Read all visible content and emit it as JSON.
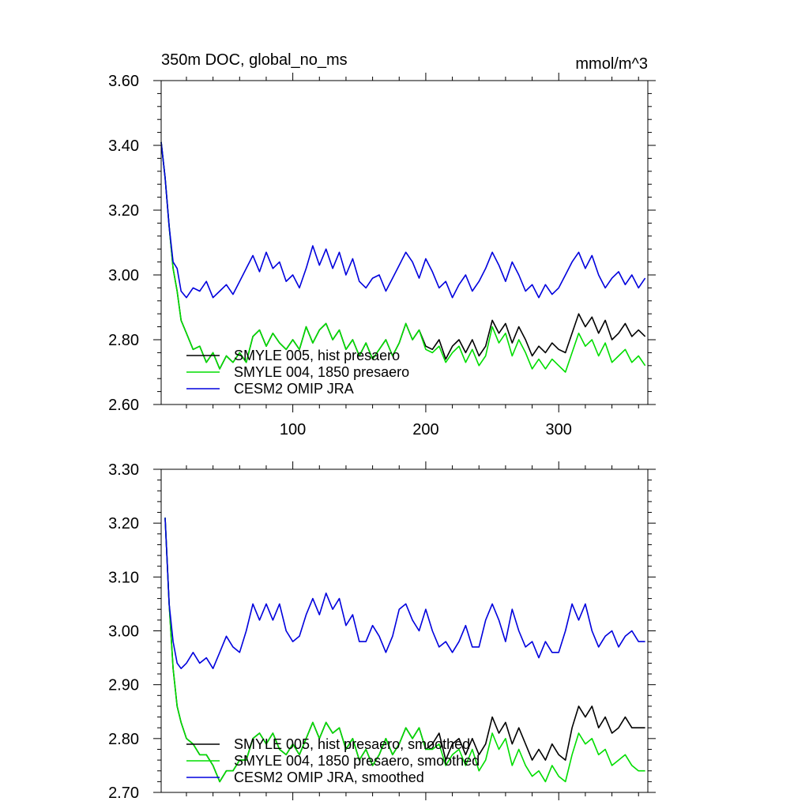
{
  "chart_data": [
    {
      "type": "line",
      "title": "350m DOC, global_no_ms",
      "units": "mmol/m^3",
      "xlim": [
        1,
        367
      ],
      "ylim": [
        2.6,
        3.6
      ],
      "x_ticks": [
        100,
        200,
        300
      ],
      "x_tick_labels": [
        "100",
        "200",
        "300"
      ],
      "y_ticks": [
        2.6,
        2.8,
        3.0,
        3.2,
        3.4,
        3.6
      ],
      "y_tick_labels": [
        "2.60",
        "2.80",
        "3.00",
        "3.20",
        "3.40",
        "3.60"
      ],
      "legend_position": "bottom-left",
      "series": [
        {
          "name": "SMYLE 005, hist presaero",
          "color": "#000000",
          "x": [
            1,
            4,
            7,
            10,
            13,
            16,
            20,
            25,
            30,
            35,
            40,
            45,
            50,
            55,
            60,
            65,
            70,
            75,
            80,
            85,
            90,
            95,
            100,
            105,
            110,
            115,
            120,
            125,
            130,
            135,
            140,
            145,
            150,
            155,
            160,
            165,
            170,
            175,
            180,
            185,
            190,
            195,
            200,
            205,
            210,
            215,
            220,
            225,
            230,
            235,
            240,
            245,
            250,
            255,
            260,
            265,
            270,
            275,
            280,
            285,
            290,
            295,
            300,
            305,
            310,
            315,
            320,
            325,
            330,
            335,
            340,
            345,
            350,
            355,
            360,
            365
          ],
          "y": [
            3.41,
            3.3,
            3.15,
            3.02,
            2.95,
            2.86,
            2.82,
            2.77,
            2.78,
            2.73,
            2.76,
            2.71,
            2.75,
            2.73,
            2.76,
            2.73,
            2.81,
            2.83,
            2.78,
            2.82,
            2.79,
            2.77,
            2.8,
            2.77,
            2.84,
            2.79,
            2.83,
            2.85,
            2.8,
            2.83,
            2.77,
            2.8,
            2.75,
            2.79,
            2.74,
            2.77,
            2.8,
            2.75,
            2.79,
            2.85,
            2.8,
            2.83,
            2.78,
            2.77,
            2.8,
            2.74,
            2.78,
            2.8,
            2.76,
            2.8,
            2.75,
            2.78,
            2.86,
            2.82,
            2.85,
            2.79,
            2.84,
            2.8,
            2.75,
            2.78,
            2.76,
            2.79,
            2.77,
            2.76,
            2.82,
            2.88,
            2.84,
            2.87,
            2.82,
            2.86,
            2.8,
            2.82,
            2.85,
            2.81,
            2.83,
            2.81
          ]
        },
        {
          "name": "SMYLE 004, 1850 presaero",
          "color": "#00dd00",
          "x": [
            1,
            4,
            7,
            10,
            13,
            16,
            20,
            25,
            30,
            35,
            40,
            45,
            50,
            55,
            60,
            65,
            70,
            75,
            80,
            85,
            90,
            95,
            100,
            105,
            110,
            115,
            120,
            125,
            130,
            135,
            140,
            145,
            150,
            155,
            160,
            165,
            170,
            175,
            180,
            185,
            190,
            195,
            200,
            205,
            210,
            215,
            220,
            225,
            230,
            235,
            240,
            245,
            250,
            255,
            260,
            265,
            270,
            275,
            280,
            285,
            290,
            295,
            300,
            305,
            310,
            315,
            320,
            325,
            330,
            335,
            340,
            345,
            350,
            355,
            360,
            365
          ],
          "y": [
            3.41,
            3.3,
            3.15,
            3.02,
            2.95,
            2.86,
            2.82,
            2.77,
            2.78,
            2.73,
            2.76,
            2.71,
            2.75,
            2.73,
            2.76,
            2.73,
            2.81,
            2.83,
            2.78,
            2.82,
            2.79,
            2.77,
            2.8,
            2.77,
            2.84,
            2.79,
            2.83,
            2.85,
            2.8,
            2.83,
            2.77,
            2.8,
            2.75,
            2.79,
            2.74,
            2.77,
            2.8,
            2.75,
            2.79,
            2.85,
            2.8,
            2.83,
            2.77,
            2.76,
            2.78,
            2.73,
            2.76,
            2.78,
            2.73,
            2.77,
            2.72,
            2.75,
            2.84,
            2.79,
            2.82,
            2.75,
            2.8,
            2.76,
            2.71,
            2.74,
            2.71,
            2.74,
            2.72,
            2.7,
            2.76,
            2.82,
            2.78,
            2.8,
            2.75,
            2.79,
            2.73,
            2.75,
            2.77,
            2.73,
            2.75,
            2.72
          ]
        },
        {
          "name": "CESM2 OMIP JRA",
          "color": "#0000dd",
          "x": [
            1,
            4,
            7,
            10,
            13,
            16,
            20,
            25,
            30,
            35,
            40,
            45,
            50,
            55,
            60,
            65,
            70,
            75,
            80,
            85,
            90,
            95,
            100,
            105,
            110,
            115,
            120,
            125,
            130,
            135,
            140,
            145,
            150,
            155,
            160,
            165,
            170,
            175,
            180,
            185,
            190,
            195,
            200,
            205,
            210,
            215,
            220,
            225,
            230,
            235,
            240,
            245,
            250,
            255,
            260,
            265,
            270,
            275,
            280,
            285,
            290,
            295,
            300,
            305,
            310,
            315,
            320,
            325,
            330,
            335,
            340,
            345,
            350,
            355,
            360,
            365
          ],
          "y": [
            3.41,
            3.3,
            3.15,
            3.04,
            3.02,
            2.95,
            2.93,
            2.96,
            2.95,
            2.98,
            2.93,
            2.95,
            2.97,
            2.94,
            2.98,
            3.02,
            3.06,
            3.01,
            3.07,
            3.02,
            3.04,
            2.98,
            3.0,
            2.96,
            3.02,
            3.09,
            3.03,
            3.08,
            3.02,
            3.07,
            3.0,
            3.05,
            2.98,
            2.96,
            2.99,
            3.0,
            2.95,
            2.99,
            3.03,
            3.07,
            3.04,
            2.99,
            3.05,
            3.01,
            2.96,
            2.98,
            2.93,
            2.97,
            3.0,
            2.95,
            2.98,
            3.02,
            3.07,
            3.03,
            2.98,
            3.04,
            3.0,
            2.95,
            2.97,
            2.93,
            2.97,
            2.94,
            2.96,
            3.0,
            3.04,
            3.07,
            3.02,
            3.06,
            3.0,
            2.96,
            2.99,
            3.01,
            2.97,
            3.0,
            2.96,
            2.99
          ]
        }
      ]
    },
    {
      "type": "line",
      "title": "",
      "units": "",
      "xlim": [
        1,
        367
      ],
      "ylim": [
        2.7,
        3.3
      ],
      "x_ticks": [
        100,
        200,
        300
      ],
      "x_tick_labels": [],
      "y_ticks": [
        2.7,
        2.8,
        2.9,
        3.0,
        3.1,
        3.2,
        3.3
      ],
      "y_tick_labels": [
        "2.70",
        "2.80",
        "2.90",
        "3.00",
        "3.10",
        "3.20",
        "3.30"
      ],
      "legend_position": "bottom-left",
      "series": [
        {
          "name": "SMYLE 005, hist presaero, smoothed",
          "color": "#000000",
          "x": [
            4,
            7,
            10,
            13,
            16,
            20,
            25,
            30,
            35,
            40,
            45,
            50,
            55,
            60,
            65,
            70,
            75,
            80,
            85,
            90,
            95,
            100,
            105,
            110,
            115,
            120,
            125,
            130,
            135,
            140,
            145,
            150,
            155,
            160,
            165,
            170,
            175,
            180,
            185,
            190,
            195,
            200,
            205,
            210,
            215,
            220,
            225,
            230,
            235,
            240,
            245,
            250,
            255,
            260,
            265,
            270,
            275,
            280,
            285,
            290,
            295,
            300,
            305,
            310,
            315,
            320,
            325,
            330,
            335,
            340,
            345,
            350,
            355,
            360,
            365
          ],
          "y": [
            3.21,
            3.05,
            2.93,
            2.86,
            2.83,
            2.8,
            2.79,
            2.77,
            2.77,
            2.75,
            2.72,
            2.74,
            2.74,
            2.76,
            2.76,
            2.8,
            2.81,
            2.79,
            2.81,
            2.78,
            2.77,
            2.79,
            2.77,
            2.8,
            2.83,
            2.8,
            2.83,
            2.81,
            2.82,
            2.78,
            2.8,
            2.76,
            2.78,
            2.75,
            2.77,
            2.8,
            2.77,
            2.79,
            2.82,
            2.8,
            2.82,
            2.78,
            2.79,
            2.81,
            2.76,
            2.79,
            2.8,
            2.77,
            2.8,
            2.77,
            2.79,
            2.84,
            2.81,
            2.83,
            2.79,
            2.82,
            2.79,
            2.76,
            2.78,
            2.76,
            2.79,
            2.77,
            2.76,
            2.82,
            2.86,
            2.84,
            2.86,
            2.82,
            2.84,
            2.81,
            2.82,
            2.84,
            2.82,
            2.82,
            2.82
          ]
        },
        {
          "name": "SMYLE 004, 1850 presaero, smoothed",
          "color": "#00dd00",
          "x": [
            4,
            7,
            10,
            13,
            16,
            20,
            25,
            30,
            35,
            40,
            45,
            50,
            55,
            60,
            65,
            70,
            75,
            80,
            85,
            90,
            95,
            100,
            105,
            110,
            115,
            120,
            125,
            130,
            135,
            140,
            145,
            150,
            155,
            160,
            165,
            170,
            175,
            180,
            185,
            190,
            195,
            200,
            205,
            210,
            215,
            220,
            225,
            230,
            235,
            240,
            245,
            250,
            255,
            260,
            265,
            270,
            275,
            280,
            285,
            290,
            295,
            300,
            305,
            310,
            315,
            320,
            325,
            330,
            335,
            340,
            345,
            350,
            355,
            360,
            365
          ],
          "y": [
            3.21,
            3.05,
            2.93,
            2.86,
            2.83,
            2.8,
            2.79,
            2.77,
            2.77,
            2.75,
            2.72,
            2.74,
            2.74,
            2.76,
            2.76,
            2.8,
            2.81,
            2.79,
            2.81,
            2.78,
            2.77,
            2.79,
            2.77,
            2.8,
            2.83,
            2.8,
            2.83,
            2.81,
            2.82,
            2.78,
            2.8,
            2.76,
            2.78,
            2.75,
            2.77,
            2.8,
            2.77,
            2.79,
            2.82,
            2.8,
            2.82,
            2.78,
            2.78,
            2.79,
            2.75,
            2.77,
            2.78,
            2.75,
            2.78,
            2.74,
            2.76,
            2.81,
            2.78,
            2.8,
            2.75,
            2.78,
            2.75,
            2.73,
            2.74,
            2.72,
            2.75,
            2.73,
            2.72,
            2.77,
            2.81,
            2.79,
            2.8,
            2.77,
            2.78,
            2.75,
            2.76,
            2.77,
            2.75,
            2.74,
            2.74
          ]
        },
        {
          "name": "CESM2 OMIP JRA, smoothed",
          "color": "#0000dd",
          "x": [
            4,
            7,
            10,
            13,
            16,
            20,
            25,
            30,
            35,
            40,
            45,
            50,
            55,
            60,
            65,
            70,
            75,
            80,
            85,
            90,
            95,
            100,
            105,
            110,
            115,
            120,
            125,
            130,
            135,
            140,
            145,
            150,
            155,
            160,
            165,
            170,
            175,
            180,
            185,
            190,
            195,
            200,
            205,
            210,
            215,
            220,
            225,
            230,
            235,
            240,
            245,
            250,
            255,
            260,
            265,
            270,
            275,
            280,
            285,
            290,
            295,
            300,
            305,
            310,
            315,
            320,
            325,
            330,
            335,
            340,
            345,
            350,
            355,
            360,
            365
          ],
          "y": [
            3.21,
            3.05,
            2.98,
            2.94,
            2.93,
            2.94,
            2.96,
            2.94,
            2.95,
            2.93,
            2.96,
            2.99,
            2.97,
            2.96,
            3.0,
            3.05,
            3.02,
            3.05,
            3.02,
            3.05,
            3.0,
            2.98,
            2.99,
            3.03,
            3.06,
            3.03,
            3.07,
            3.04,
            3.06,
            3.01,
            3.03,
            2.98,
            2.98,
            3.01,
            2.99,
            2.96,
            2.99,
            3.04,
            3.05,
            3.02,
            3.0,
            3.04,
            3.0,
            2.97,
            2.98,
            2.96,
            2.98,
            3.01,
            2.97,
            2.97,
            3.02,
            3.05,
            3.02,
            2.98,
            3.04,
            3.0,
            2.97,
            2.98,
            2.95,
            2.98,
            2.96,
            2.96,
            3.0,
            3.05,
            3.02,
            3.05,
            3.0,
            2.97,
            2.99,
            3.0,
            2.97,
            2.99,
            3.0,
            2.98,
            2.98
          ]
        }
      ]
    }
  ]
}
